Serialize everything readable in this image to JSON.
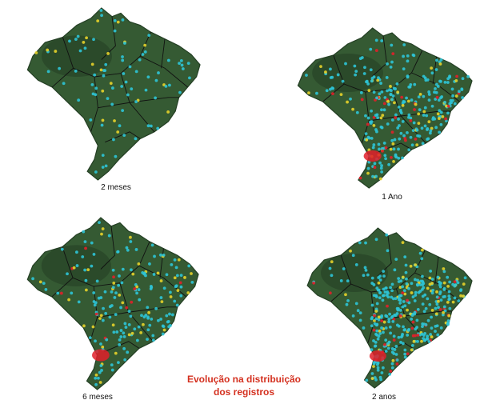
{
  "title": {
    "line1": "Evolução na distribuição",
    "line2": "dos registros",
    "color": "#d4301f"
  },
  "legend_colors": {
    "cyan_dots": "#2ec4d6",
    "yellow_dots": "#e6d22a",
    "red_dots": "#e0202a",
    "land": "#355a33",
    "land_dark": "#243f24",
    "state_borders": "#111111"
  },
  "panels": [
    {
      "id": "p1",
      "caption": "2 meses",
      "density": 0.15,
      "icon": "brazil-map-2-meses"
    },
    {
      "id": "p2",
      "caption": "1 Ano",
      "density": 0.75,
      "icon": "brazil-map-1-ano"
    },
    {
      "id": "p3",
      "caption": "6 meses",
      "density": 0.45,
      "icon": "brazil-map-6-meses"
    },
    {
      "id": "p4",
      "caption": "2 anos",
      "density": 1.0,
      "icon": "brazil-map-2-anos"
    }
  ]
}
